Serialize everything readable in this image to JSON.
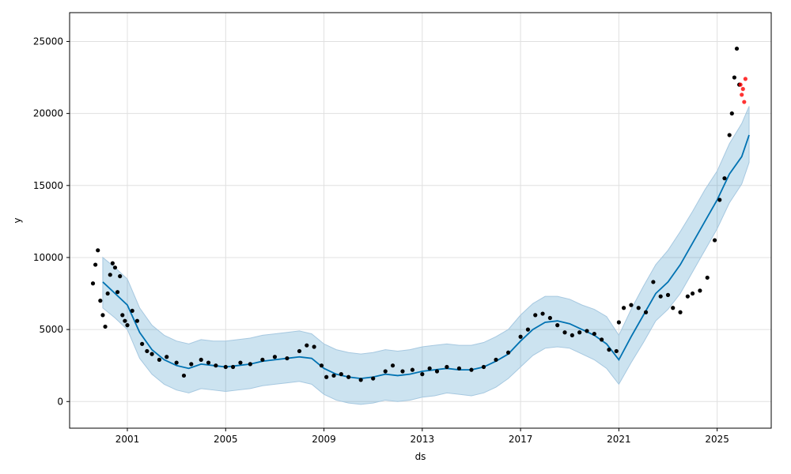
{
  "chart_data": {
    "type": "line",
    "title": "",
    "xlabel": "ds",
    "ylabel": "y",
    "xlim": [
      1998.65,
      2027.2
    ],
    "ylim": [
      -1850,
      27000
    ],
    "grid": true,
    "x_ticks": [
      2001,
      2005,
      2009,
      2013,
      2017,
      2021,
      2025
    ],
    "y_ticks": [
      0,
      5000,
      10000,
      15000,
      20000,
      25000
    ],
    "colors": {
      "forecast_line": "#0072B2",
      "uncertainty_band": "#0072B2",
      "observed_points": "#000000",
      "recent_points": "#ff0000",
      "grid": "#e0e0e0"
    },
    "series": [
      {
        "role": "forecast",
        "x": [
          2000.0,
          2000.5,
          2001.0,
          2001.5,
          2002.0,
          2002.5,
          2003.0,
          2003.5,
          2004.0,
          2004.5,
          2005.0,
          2005.5,
          2006.0,
          2006.5,
          2007.0,
          2007.5,
          2008.0,
          2008.5,
          2009.0,
          2009.5,
          2010.0,
          2010.5,
          2011.0,
          2011.5,
          2012.0,
          2012.5,
          2013.0,
          2013.5,
          2014.0,
          2014.5,
          2015.0,
          2015.5,
          2016.0,
          2016.5,
          2017.0,
          2017.5,
          2018.0,
          2018.5,
          2019.0,
          2019.5,
          2020.0,
          2020.5,
          2021.0,
          2021.5,
          2022.0,
          2022.5,
          2023.0,
          2023.5,
          2024.0,
          2024.5,
          2025.0,
          2025.5,
          2026.0,
          2026.3
        ],
        "y": [
          8300,
          7500,
          6700,
          4800,
          3600,
          2900,
          2500,
          2300,
          2600,
          2500,
          2400,
          2500,
          2600,
          2800,
          2900,
          3000,
          3100,
          3000,
          2300,
          1900,
          1700,
          1600,
          1700,
          1900,
          1800,
          1900,
          2100,
          2200,
          2300,
          2200,
          2200,
          2400,
          2800,
          3300,
          4200,
          5000,
          5500,
          5600,
          5400,
          5000,
          4600,
          4000,
          2900,
          4500,
          6000,
          7500,
          8300,
          9500,
          11000,
          12500,
          14000,
          15800,
          17000,
          18500
        ]
      },
      {
        "role": "uncertainty_band",
        "x": [
          2000.0,
          2000.5,
          2001.0,
          2001.5,
          2002.0,
          2002.5,
          2003.0,
          2003.5,
          2004.0,
          2004.5,
          2005.0,
          2005.5,
          2006.0,
          2006.5,
          2007.0,
          2007.5,
          2008.0,
          2008.5,
          2009.0,
          2009.5,
          2010.0,
          2010.5,
          2011.0,
          2011.5,
          2012.0,
          2012.5,
          2013.0,
          2013.5,
          2014.0,
          2014.5,
          2015.0,
          2015.5,
          2016.0,
          2016.5,
          2017.0,
          2017.5,
          2018.0,
          2018.5,
          2019.0,
          2019.5,
          2020.0,
          2020.5,
          2021.0,
          2021.5,
          2022.0,
          2022.5,
          2023.0,
          2023.5,
          2024.0,
          2024.5,
          2025.0,
          2025.5,
          2026.0,
          2026.3
        ],
        "upper": [
          10000,
          9300,
          8500,
          6500,
          5300,
          4600,
          4200,
          4000,
          4300,
          4200,
          4200,
          4300,
          4400,
          4600,
          4700,
          4800,
          4900,
          4700,
          4000,
          3600,
          3400,
          3300,
          3400,
          3600,
          3500,
          3600,
          3800,
          3900,
          4000,
          3900,
          3900,
          4100,
          4500,
          5000,
          6000,
          6800,
          7300,
          7300,
          7100,
          6700,
          6400,
          5900,
          4600,
          6400,
          8000,
          9500,
          10500,
          11800,
          13200,
          14700,
          16000,
          17900,
          19300,
          20500
        ],
        "lower": [
          6500,
          5800,
          5000,
          3000,
          1900,
          1200,
          800,
          600,
          900,
          800,
          700,
          800,
          900,
          1100,
          1200,
          1300,
          1400,
          1200,
          500,
          100,
          -100,
          -200,
          -100,
          100,
          0,
          100,
          300,
          400,
          600,
          500,
          400,
          600,
          1000,
          1600,
          2400,
          3200,
          3700,
          3800,
          3700,
          3300,
          2900,
          2300,
          1200,
          2700,
          4100,
          5600,
          6400,
          7500,
          9000,
          10500,
          12000,
          13800,
          15100,
          16600
        ]
      },
      {
        "role": "observed",
        "x": [
          1999.6,
          1999.7,
          1999.8,
          1999.9,
          2000.0,
          2000.1,
          2000.2,
          2000.3,
          2000.4,
          2000.5,
          2000.6,
          2000.7,
          2000.8,
          2000.9,
          2001.0,
          2001.2,
          2001.4,
          2001.6,
          2001.8,
          2002.0,
          2002.3,
          2002.6,
          2003.0,
          2003.3,
          2003.6,
          2004.0,
          2004.3,
          2004.6,
          2005.0,
          2005.3,
          2005.6,
          2006.0,
          2006.5,
          2007.0,
          2007.5,
          2008.0,
          2008.3,
          2008.6,
          2008.9,
          2009.1,
          2009.4,
          2009.7,
          2010.0,
          2010.5,
          2011.0,
          2011.5,
          2011.8,
          2012.2,
          2012.6,
          2013.0,
          2013.3,
          2013.6,
          2014.0,
          2014.5,
          2015.0,
          2015.5,
          2016.0,
          2016.5,
          2017.0,
          2017.3,
          2017.6,
          2017.9,
          2018.2,
          2018.5,
          2018.8,
          2019.1,
          2019.4,
          2019.7,
          2020.0,
          2020.3,
          2020.6,
          2020.9,
          2021.0,
          2021.2,
          2021.5,
          2021.8,
          2022.1,
          2022.4,
          2022.7,
          2023.0,
          2023.2,
          2023.5,
          2023.8,
          2024.0,
          2024.3,
          2024.6,
          2024.9,
          2025.1,
          2025.3,
          2025.5,
          2025.6,
          2025.7,
          2025.8,
          2025.9
        ],
        "y": [
          8200,
          9500,
          10500,
          7000,
          6000,
          5200,
          7500,
          8800,
          9600,
          9300,
          7600,
          8700,
          6000,
          5600,
          5300,
          6300,
          5600,
          4000,
          3500,
          3300,
          2900,
          3100,
          2700,
          1800,
          2600,
          2900,
          2700,
          2500,
          2400,
          2400,
          2700,
          2600,
          2900,
          3100,
          3000,
          3500,
          3900,
          3800,
          2500,
          1700,
          1800,
          1900,
          1700,
          1500,
          1600,
          2100,
          2500,
          2100,
          2200,
          1900,
          2300,
          2100,
          2400,
          2300,
          2200,
          2400,
          2900,
          3400,
          4500,
          5000,
          6000,
          6100,
          5800,
          5300,
          4800,
          4600,
          4800,
          4900,
          4700,
          4300,
          3600,
          3500,
          5500,
          6500,
          6700,
          6500,
          6200,
          8300,
          7300,
          7400,
          6500,
          6200,
          7300,
          7500,
          7700,
          8600,
          11200,
          14000,
          15500,
          18500,
          20000,
          22500,
          24500,
          22000
        ]
      },
      {
        "role": "recent",
        "x": [
          2025.95,
          2026.0,
          2026.05,
          2026.1,
          2026.15
        ],
        "y": [
          22000,
          21300,
          21700,
          20800,
          22400
        ]
      }
    ]
  }
}
